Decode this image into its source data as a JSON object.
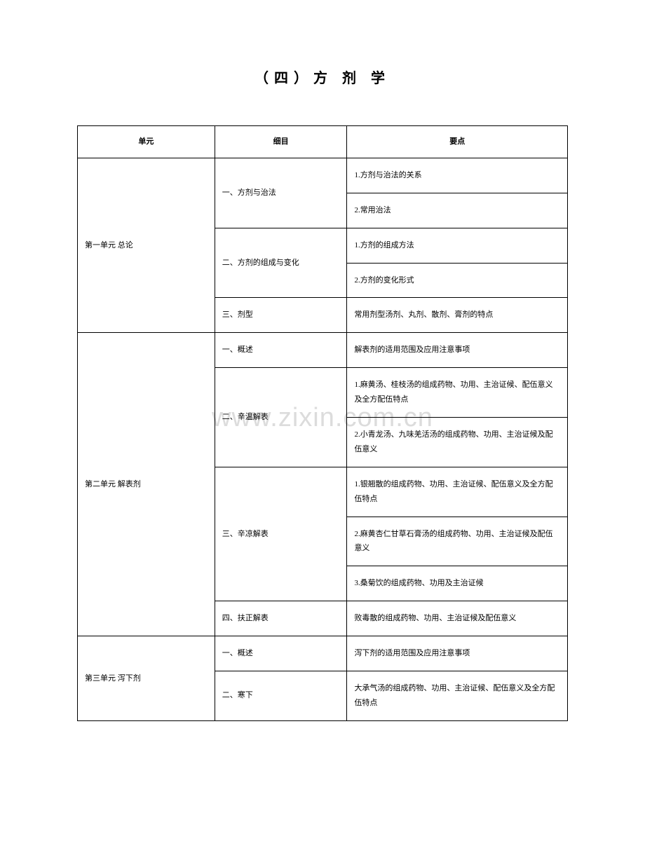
{
  "title": "（四）方  剂  学",
  "watermark": "www.zixin.com.cn",
  "headers": {
    "unit": "单元",
    "detail": "细目",
    "point": "要点"
  },
  "rows": [
    {
      "unit": "第一单元  总论",
      "unitRowspan": 5,
      "detail": "一、方剂与治法",
      "detailRowspan": 2,
      "point": "1.方剂与治法的关系"
    },
    {
      "point": "2.常用治法"
    },
    {
      "detail": "二、方剂的组成与变化",
      "detailRowspan": 2,
      "point": "1.方剂的组成方法"
    },
    {
      "point": "2.方剂的变化形式"
    },
    {
      "detail": "三、剂型",
      "detailRowspan": 1,
      "point": "常用剂型汤剂、丸剂、散剂、膏剂的特点"
    },
    {
      "unit": "第二单元  解表剂",
      "unitRowspan": 7,
      "detail": "一、概述",
      "detailRowspan": 1,
      "point": "解表剂的适用范围及应用注意事项"
    },
    {
      "detail": "二、辛温解表",
      "detailRowspan": 2,
      "point": "1.麻黄汤、桂枝汤的组成药物、功用、主治证候、配伍意义及全方配伍特点"
    },
    {
      "point": "2.小青龙汤、九味羌活汤的组成药物、功用、主治证候及配伍意义"
    },
    {
      "detail": "三、辛凉解表",
      "detailRowspan": 3,
      "point": "1.银翘散的组成药物、功用、主治证候、配伍意义及全方配伍特点"
    },
    {
      "point": "2.麻黄杏仁甘草石膏汤的组成药物、功用、主治证候及配伍意义"
    },
    {
      "point": "3.桑菊饮的组成药物、功用及主治证候"
    },
    {
      "detail": "四、扶正解表",
      "detailRowspan": 1,
      "point": "败毒散的组成药物、功用、主治证候及配伍意义"
    },
    {
      "unit": "第三单元  泻下剂",
      "unitRowspan": 2,
      "detail": "一、概述",
      "detailRowspan": 1,
      "point": "泻下剂的适用范围及应用注意事项"
    },
    {
      "detail": "二、寒下",
      "detailRowspan": 1,
      "point": "大承气汤的组成药物、功用、主治证候、配伍意义及全方配伍特点"
    }
  ]
}
